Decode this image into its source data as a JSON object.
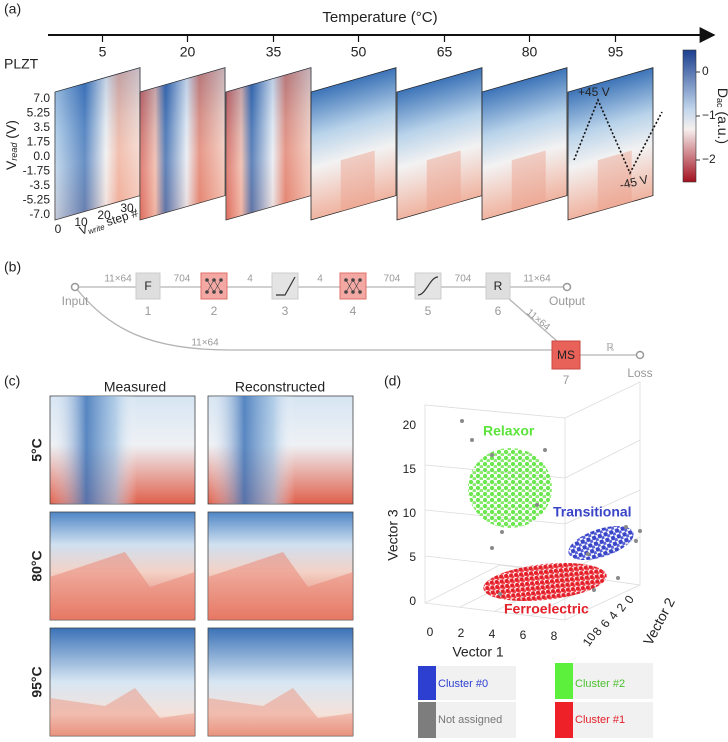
{
  "panel_a": {
    "label": "(a)",
    "axis_title": "Temperature (°C)",
    "temperatures": [
      "5",
      "20",
      "35",
      "50",
      "65",
      "80",
      "95"
    ],
    "material": "PLZT",
    "y_axis": {
      "symbol": "V",
      "subscript": "read",
      "unit": " (V)"
    },
    "y_ticks": [
      "7.0",
      "5.25",
      "3.5",
      "1.75",
      "0.0",
      "-1.75",
      "-3.5",
      "-5.25",
      "-7.0"
    ],
    "x_ticks": [
      "0",
      "10",
      "20",
      "30"
    ],
    "x_axis": {
      "symbol": "V",
      "subscript": "write",
      "rest": " step #"
    },
    "colorbar": {
      "symbol": "D",
      "subscript": "ac",
      "unit": " (a.u.)",
      "ticks": [
        "0",
        "−1",
        "−2"
      ]
    },
    "annotations": [
      "+45 V",
      "-45 V"
    ]
  },
  "panel_b": {
    "label": "(b)",
    "input": "Input",
    "output": "Output",
    "loss": "Loss",
    "nodes": [
      {
        "symbol": "F",
        "index": "1"
      },
      {
        "index": "2"
      },
      {
        "index": "3"
      },
      {
        "index": "4"
      },
      {
        "index": "5"
      },
      {
        "symbol": "R",
        "index": "6"
      },
      {
        "symbol": "MS",
        "index": "7"
      }
    ],
    "edges": [
      "11×64",
      "704",
      "4",
      "4",
      "704",
      "704",
      "11×64",
      "11×64",
      "11×64",
      "ℝ"
    ]
  },
  "panel_c": {
    "label": "(c)",
    "columns": [
      "Measured",
      "Reconstructed"
    ],
    "rows": [
      "5°C",
      "80°C",
      "95°C"
    ]
  },
  "panel_d": {
    "label": "(d)",
    "cluster_names": [
      "Relaxor",
      "Transitional",
      "Ferroelectric"
    ],
    "axes": [
      "Vector 1",
      "Vector 2",
      "Vector 3"
    ],
    "vector1_ticks": [
      "0",
      "2",
      "4",
      "6",
      "8"
    ],
    "vector2_ticks": [
      "10",
      "8",
      "6",
      "4",
      "2",
      "0"
    ],
    "vector3_ticks": [
      "20",
      "15",
      "10",
      "5",
      "0"
    ],
    "legend": [
      "Cluster #0",
      "Not assigned",
      "Cluster #2",
      "Cluster #1"
    ]
  }
}
